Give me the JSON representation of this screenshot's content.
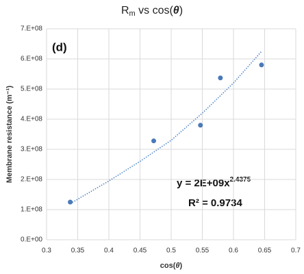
{
  "chart_data": {
    "type": "scatter",
    "title": [
      "R",
      "m",
      " vs cos(",
      "θ",
      ")"
    ],
    "xlabel": [
      "cos(",
      "θ",
      ")"
    ],
    "ylabel": "Membrane resistance  (m⁻¹)",
    "annotations": {
      "panel": "(d)",
      "equation": [
        "y = 2E+09x",
        "2.4375"
      ],
      "r_squared": "R² = 0.9734"
    },
    "series": [
      {
        "name": "data",
        "color": "#4a7ab8",
        "x": [
          0.338,
          0.472,
          0.547,
          0.579,
          0.645
        ],
        "values": [
          125000000,
          328000000,
          380000000,
          537000000,
          580000000
        ]
      },
      {
        "name": "trendline",
        "color": "#4f86c6",
        "x": [
          0.338,
          0.4,
          0.45,
          0.5,
          0.55,
          0.6,
          0.645
        ],
        "values": [
          120000000,
          195000000,
          260000000,
          330000000,
          420000000,
          520000000,
          625000000
        ]
      }
    ],
    "xlim": [
      0.3,
      0.7
    ],
    "xticks": [
      0.3,
      0.35,
      0.4,
      0.45,
      0.5,
      0.55,
      0.6,
      0.65,
      0.7
    ],
    "ylim": [
      0,
      700000000
    ],
    "yticks": [
      {
        "value": 0,
        "label": "0.E+00"
      },
      {
        "value": 100000000,
        "label": "1.E+08"
      },
      {
        "value": 200000000,
        "label": "2.E+08"
      },
      {
        "value": 300000000,
        "label": "3.E+08"
      },
      {
        "value": 400000000,
        "label": "4.E+08"
      },
      {
        "value": 500000000,
        "label": "5.E+08"
      },
      {
        "value": 600000000,
        "label": "6.E+08"
      },
      {
        "value": 700000000,
        "label": "7.E+08"
      }
    ],
    "grid": true
  }
}
